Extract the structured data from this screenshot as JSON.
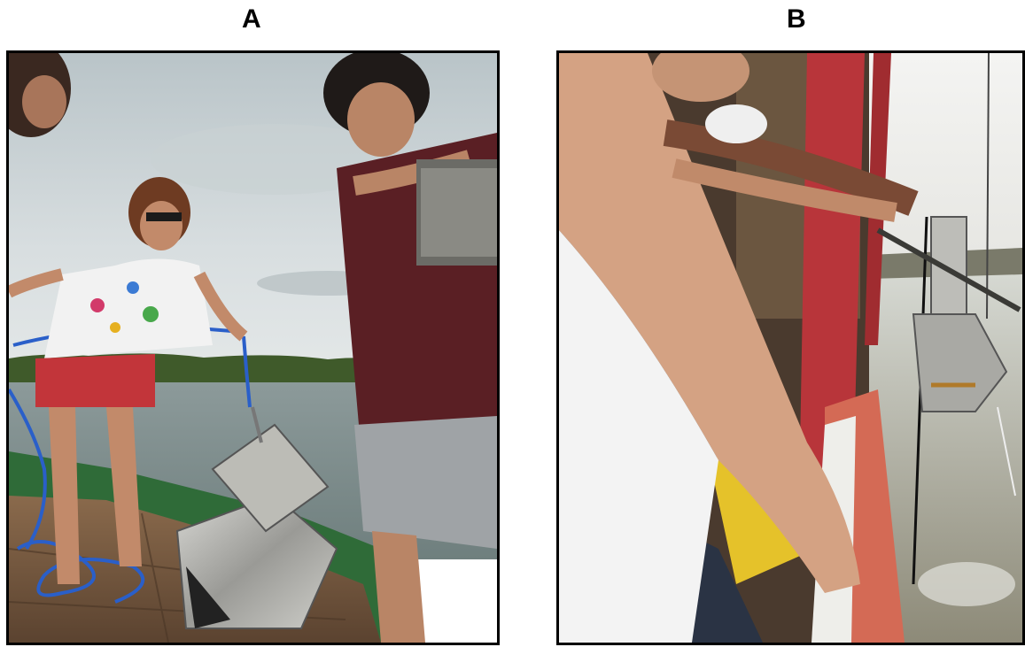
{
  "figure": {
    "panels": [
      {
        "label": "A"
      },
      {
        "label": "B"
      }
    ]
  }
}
